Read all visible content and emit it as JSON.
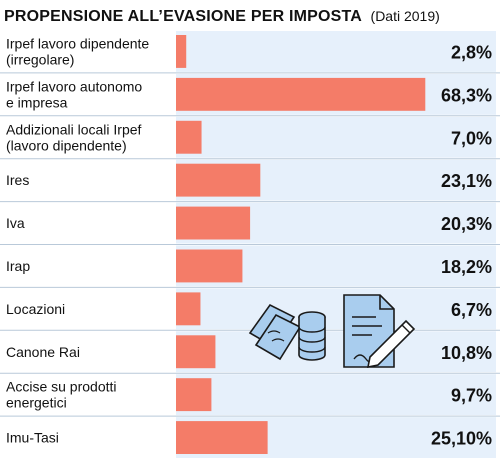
{
  "chart_data": {
    "type": "bar",
    "orientation": "horizontal",
    "title": "PROPENSIONE ALL’EVASIONE PER IMPOSTA",
    "subtitle": "(Dati 2019)",
    "categories": [
      "Irpef lavoro dipendente (irregolare)",
      "Irpef lavoro autonomo e impresa",
      "Addizionali locali Irpef (lavoro dipendente)",
      "Ires",
      "Iva",
      "Irap",
      "Locazioni",
      "Canone Rai",
      "Accise su prodotti energetici",
      "Imu-Tasi"
    ],
    "category_lines": [
      [
        "Irpef lavoro dipendente",
        "(irregolare)"
      ],
      [
        "Irpef lavoro autonomo",
        "e impresa"
      ],
      [
        "Addizionali locali Irpef",
        "(lavoro dipendente)"
      ],
      [
        "Ires"
      ],
      [
        "Iva"
      ],
      [
        "Irap"
      ],
      [
        "Locazioni"
      ],
      [
        "Canone Rai"
      ],
      [
        "Accise su prodotti",
        "energetici"
      ],
      [
        "Imu-Tasi"
      ]
    ],
    "values": [
      2.8,
      68.3,
      7.0,
      23.1,
      20.3,
      18.2,
      6.7,
      10.8,
      9.7,
      25.1
    ],
    "value_labels": [
      "2,8%",
      "68,3%",
      "7,0%",
      "23,1%",
      "20,3%",
      "18,2%",
      "6,7%",
      "10,8%",
      "9,7%",
      "25,10%"
    ],
    "unit": "%",
    "xlim": [
      0,
      100
    ],
    "grid": false,
    "legend": "none",
    "colors": {
      "bar": "#f47c68",
      "track": "#e6f0fb",
      "divider": "#b9c9d9",
      "text": "#111111",
      "illustration_fill": "#a9cdee",
      "illustration_stroke": "#1a1a1a"
    }
  },
  "decorations": {
    "icons": [
      "money-bills-icon",
      "coin-stack-icon",
      "document-pen-icon"
    ]
  }
}
